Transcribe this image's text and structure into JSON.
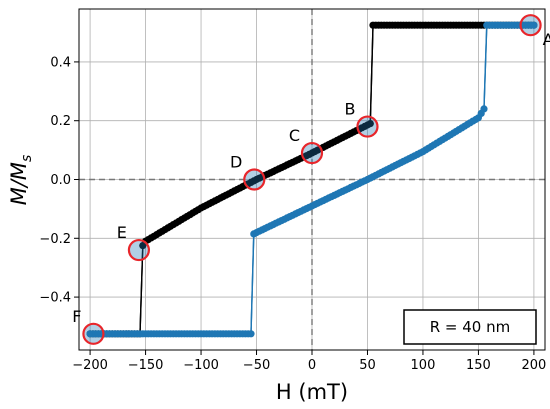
{
  "chart_data": {
    "type": "line",
    "xlabel": "H (mT)",
    "ylabel": {
      "main": "M/M",
      "sub": "s"
    },
    "xlim": [
      -210,
      210
    ],
    "ylim": [
      -0.58,
      0.58
    ],
    "xticks": [
      -200,
      -150,
      -100,
      -50,
      0,
      50,
      100,
      150,
      200
    ],
    "xtick_labels": [
      "−200",
      "−150",
      "−100",
      "−50",
      "0",
      "50",
      "100",
      "150",
      "200"
    ],
    "yticks": [
      -0.4,
      -0.2,
      0.0,
      0.2,
      0.4
    ],
    "ytick_labels": [
      "−0.4",
      "−0.2",
      "0.0",
      "0.2",
      "0.4"
    ],
    "grid": true,
    "zero_lines": true,
    "legend": {
      "text": "R = 40 nm",
      "placement": "bottom-right"
    },
    "series": [
      {
        "color": "#000000",
        "segments": [
          {
            "x_from": 200,
            "x_to": 55,
            "step": 2.5,
            "y_const": 0.525
          },
          {
            "x_from": 52.5,
            "x_to": -152.5,
            "step": 2.5,
            "y_at": [
              [
                52.5,
                0.19
              ],
              [
                0,
                0.09
              ],
              [
                -50,
                0.0
              ],
              [
                -100,
                -0.097
              ],
              [
                -150,
                -0.21
              ],
              [
                -152.5,
                -0.225
              ]
            ]
          },
          {
            "x_from": -155,
            "x_to": -200,
            "step": 2.5,
            "y_const": -0.525
          }
        ],
        "connectors": [
          {
            "x": [
              55,
              52.5
            ],
            "y": [
              0.525,
              0.19
            ]
          },
          {
            "x": [
              -152.5,
              -155
            ],
            "y": [
              -0.225,
              -0.525
            ]
          }
        ]
      },
      {
        "color": "#1f77b4",
        "segments": [
          {
            "x_from": -200,
            "x_to": -55,
            "step": 2.5,
            "y_const": -0.525
          },
          {
            "x_from": -52.5,
            "x_to": 155,
            "step": 2.5,
            "y_at": [
              [
                -52.5,
                -0.185
              ],
              [
                0,
                -0.09
              ],
              [
                50,
                0.0
              ],
              [
                100,
                0.095
              ],
              [
                150,
                0.21
              ],
              [
                155,
                0.24
              ]
            ]
          },
          {
            "x_from": 157.5,
            "x_to": 200,
            "step": 2.5,
            "y_const": 0.525
          }
        ],
        "connectors": [
          {
            "x": [
              -55,
              -52.5
            ],
            "y": [
              -0.525,
              -0.185
            ]
          },
          {
            "x": [
              155,
              157.5
            ],
            "y": [
              0.24,
              0.525
            ]
          }
        ]
      }
    ],
    "highlighted_points": [
      {
        "label": "A",
        "x": 197,
        "y": 0.525,
        "label_side": "right-below"
      },
      {
        "label": "B",
        "x": 50,
        "y": 0.18,
        "label_side": "left-above"
      },
      {
        "label": "C",
        "x": 0,
        "y": 0.09,
        "label_side": "left-above"
      },
      {
        "label": "D",
        "x": -52,
        "y": 0.0,
        "label_side": "left-above"
      },
      {
        "label": "E",
        "x": -156,
        "y": -0.24,
        "label_side": "left-above"
      },
      {
        "label": "F",
        "x": -197,
        "y": -0.525,
        "label_side": "left-above"
      }
    ],
    "highlight_style": {
      "ring_color": "#e8262b",
      "fill_color": "#1f77b4"
    }
  }
}
